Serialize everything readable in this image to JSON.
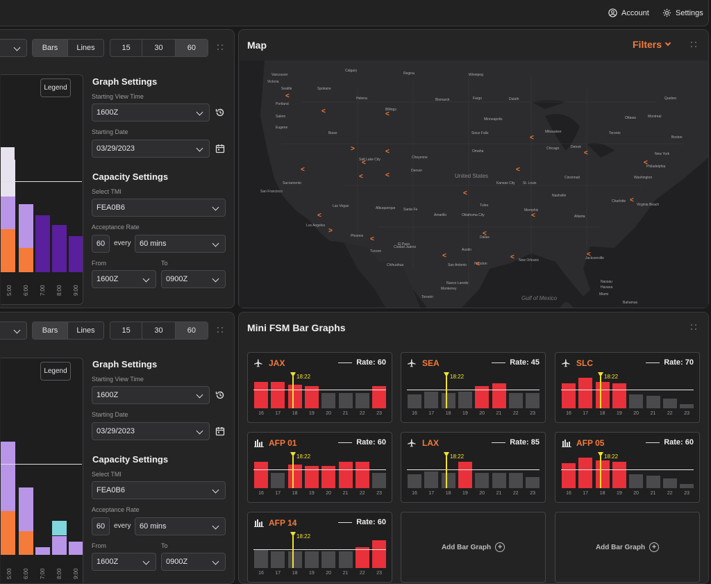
{
  "topbar": {
    "account": "Account",
    "settings": "Settings"
  },
  "graphs": [
    {
      "seg1": [
        "Bars",
        "Lines"
      ],
      "seg2": [
        "15",
        "30",
        "60"
      ],
      "legend": "Legend",
      "settings_title": "Graph Settings",
      "view_label": "Starting View Time",
      "view_value": "1600Z",
      "date_label": "Starting Date",
      "date_value": "03/29/2023",
      "cap_title": "Capacity Settings",
      "tmi_label": "Select TMI",
      "tmi_value": "FEA0B6",
      "acc_label": "Acceptance Rate",
      "acc_value": "60",
      "every": "every",
      "mins": "60 mins",
      "from_label": "From",
      "from_value": "1600Z",
      "to_label": "To",
      "to_value": "0900Z",
      "ticks": [
        "5:00",
        "6:00",
        "7:00",
        "8:00",
        "9:00"
      ]
    },
    {
      "seg1": [
        "Bars",
        "Lines"
      ],
      "seg2": [
        "15",
        "30",
        "60"
      ],
      "legend": "Legend",
      "settings_title": "Graph Settings",
      "view_label": "Starting View Time",
      "view_value": "1600Z",
      "date_label": "Starting Date",
      "date_value": "03/29/2023",
      "cap_title": "Capacity Settings",
      "tmi_label": "Select TMI",
      "tmi_value": "FEA0B6",
      "acc_label": "Acceptance Rate",
      "acc_value": "60",
      "every": "every",
      "mins": "60 mins",
      "from_label": "From",
      "from_value": "1600Z",
      "to_label": "To",
      "to_value": "0900Z",
      "ticks": [
        "5:00",
        "6:00",
        "7:00",
        "8:00",
        "9:00"
      ]
    }
  ],
  "map": {
    "title": "Map",
    "filters": "Filters",
    "cities": [
      "Seattle",
      "Portland",
      "Salem",
      "Eugene",
      "Boise",
      "Salt Lake City",
      "Sacramento",
      "San Francisco",
      "Las Vegas",
      "Los Angeles",
      "Phoenix",
      "Tucson",
      "Denver",
      "Cheyenne",
      "Billings",
      "Helena",
      "Spokane",
      "Bismarck",
      "Fargo",
      "Minneapolis",
      "Duluth",
      "Sioux Falls",
      "Omaha",
      "Kansas City",
      "Chicago",
      "Milwaukee",
      "Detroit",
      "Toronto",
      "Ottawa",
      "Montreal",
      "Quebec",
      "Boston",
      "New York",
      "Philadelphia",
      "Washington",
      "Virginia Beach",
      "Charlotte",
      "Atlanta",
      "Nashville",
      "Memphis",
      "Dallas",
      "Houston",
      "San Antonio",
      "Austin",
      "New Orleans",
      "Jacksonville",
      "Miami",
      "Tulsa",
      "Oklahoma City",
      "Amarillo",
      "Albuquerque",
      "Santa Fe",
      "El Paso",
      "Ciudad Juárez",
      "Chihuahua",
      "Monterrey",
      "Nuevo Laredo",
      "Torreón",
      "Cincinnati",
      "St. Louis",
      "Winnipeg",
      "Regina",
      "Calgary",
      "Vancouver",
      "Victoria",
      "United States",
      "Gulf of Mexico",
      "Bahamas",
      "Havana",
      "Nassau"
    ]
  },
  "mini": {
    "title": "Mini FSM Bar Graphs",
    "now": "18:22",
    "xticks": [
      "16",
      "17",
      "18",
      "19",
      "20",
      "21",
      "22",
      "23"
    ],
    "cards": [
      {
        "name": "JAX",
        "icon": "plane",
        "rate": "Rate: 60"
      },
      {
        "name": "SEA",
        "icon": "plane",
        "rate": "Rate: 45"
      },
      {
        "name": "SLC",
        "icon": "plane",
        "rate": "Rate: 70"
      },
      {
        "name": "AFP 01",
        "icon": "chart",
        "rate": "Rate: 60"
      },
      {
        "name": "LAX",
        "icon": "plane",
        "rate": "Rate: 85"
      },
      {
        "name": "AFP 05",
        "icon": "chart",
        "rate": "Rate: 60"
      },
      {
        "name": "AFP 14",
        "icon": "chart",
        "rate": "Rate: 60"
      }
    ],
    "add_label": "Add Bar Graph"
  },
  "colors": {
    "accent": "#f47b3a",
    "red": "#e8313a",
    "grey": "#4a4a4c",
    "purple": "#5a1f9c",
    "lavender": "#b995e8",
    "pale": "#e6e2ee",
    "orange": "#f47b3a",
    "cyan": "#7fd6dc"
  }
}
